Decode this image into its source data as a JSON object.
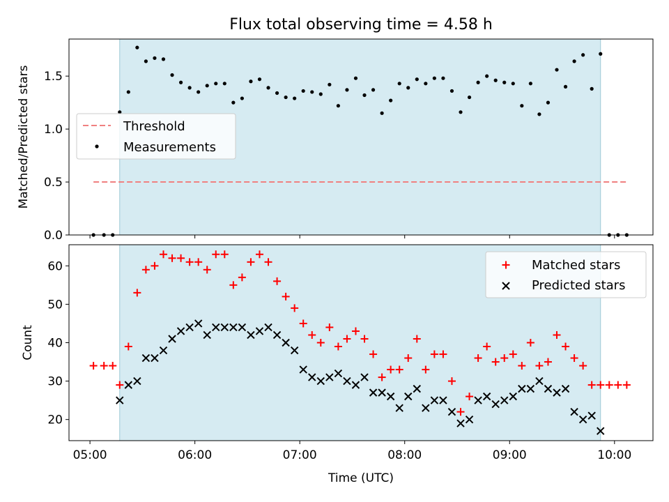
{
  "chart_data": [
    {
      "type": "scatter",
      "title": "Flux total observing time = 4.58 h",
      "xlabel": "",
      "ylabel": "Matched/Predicted stars",
      "xlim": [
        "04:48",
        "10:22"
      ],
      "ylim": [
        0,
        1.85
      ],
      "yticks": [
        "0.0",
        "0.5",
        "1.0",
        "1.5"
      ],
      "shaded_interval": [
        "05:17",
        "09:52"
      ],
      "threshold": {
        "name": "Threshold",
        "value": 0.5,
        "x_range": [
          "05:02",
          "10:07"
        ],
        "color": "#f08080"
      },
      "legend": {
        "position": "center-left",
        "entries": [
          "Threshold",
          "Measurements"
        ]
      },
      "series": [
        {
          "name": "Measurements",
          "color": "#000000",
          "points": [
            [
              "05:02",
              0.0
            ],
            [
              "05:08",
              0.0
            ],
            [
              "05:13",
              0.0
            ],
            [
              "05:17",
              1.16
            ],
            [
              "05:22",
              1.35
            ],
            [
              "05:27",
              1.77
            ],
            [
              "05:32",
              1.64
            ],
            [
              "05:37",
              1.67
            ],
            [
              "05:42",
              1.66
            ],
            [
              "05:47",
              1.51
            ],
            [
              "05:52",
              1.44
            ],
            [
              "05:57",
              1.39
            ],
            [
              "06:02",
              1.35
            ],
            [
              "06:07",
              1.41
            ],
            [
              "06:12",
              1.43
            ],
            [
              "06:17",
              1.43
            ],
            [
              "06:22",
              1.25
            ],
            [
              "06:27",
              1.29
            ],
            [
              "06:32",
              1.45
            ],
            [
              "06:37",
              1.47
            ],
            [
              "06:42",
              1.39
            ],
            [
              "06:47",
              1.34
            ],
            [
              "06:52",
              1.3
            ],
            [
              "06:57",
              1.29
            ],
            [
              "07:02",
              1.36
            ],
            [
              "07:07",
              1.35
            ],
            [
              "07:12",
              1.33
            ],
            [
              "07:17",
              1.42
            ],
            [
              "07:22",
              1.22
            ],
            [
              "07:27",
              1.37
            ],
            [
              "07:32",
              1.48
            ],
            [
              "07:37",
              1.32
            ],
            [
              "07:42",
              1.37
            ],
            [
              "07:47",
              1.15
            ],
            [
              "07:52",
              1.27
            ],
            [
              "07:57",
              1.43
            ],
            [
              "08:02",
              1.39
            ],
            [
              "08:07",
              1.47
            ],
            [
              "08:12",
              1.43
            ],
            [
              "08:17",
              1.48
            ],
            [
              "08:22",
              1.48
            ],
            [
              "08:27",
              1.36
            ],
            [
              "08:32",
              1.16
            ],
            [
              "08:37",
              1.3
            ],
            [
              "08:42",
              1.44
            ],
            [
              "08:47",
              1.5
            ],
            [
              "08:52",
              1.46
            ],
            [
              "08:57",
              1.44
            ],
            [
              "09:02",
              1.43
            ],
            [
              "09:07",
              1.22
            ],
            [
              "09:12",
              1.43
            ],
            [
              "09:17",
              1.14
            ],
            [
              "09:22",
              1.25
            ],
            [
              "09:27",
              1.56
            ],
            [
              "09:32",
              1.4
            ],
            [
              "09:37",
              1.64
            ],
            [
              "09:42",
              1.7
            ],
            [
              "09:47",
              1.38
            ],
            [
              "09:52",
              1.71
            ],
            [
              "09:57",
              0.0
            ],
            [
              "10:02",
              0.0
            ],
            [
              "10:07",
              0.0
            ]
          ]
        }
      ]
    },
    {
      "type": "scatter",
      "title": "",
      "xlabel": "Time (UTC)",
      "ylabel": "Count",
      "xlim": [
        "04:48",
        "10:22"
      ],
      "ylim": [
        14.5,
        65.5
      ],
      "yticks": [
        "20",
        "30",
        "40",
        "50",
        "60"
      ],
      "xticks": [
        "05:00",
        "06:00",
        "07:00",
        "08:00",
        "09:00",
        "10:00"
      ],
      "shaded_interval": [
        "05:17",
        "09:52"
      ],
      "legend": {
        "position": "top-right",
        "entries": [
          "Matched stars",
          "Predicted stars"
        ]
      },
      "series": [
        {
          "name": "Matched stars",
          "marker": "+",
          "color": "#ff0000",
          "points": [
            [
              "05:02",
              34
            ],
            [
              "05:08",
              34
            ],
            [
              "05:13",
              34
            ],
            [
              "05:17",
              29
            ],
            [
              "05:22",
              39
            ],
            [
              "05:27",
              53
            ],
            [
              "05:32",
              59
            ],
            [
              "05:37",
              60
            ],
            [
              "05:42",
              63
            ],
            [
              "05:47",
              62
            ],
            [
              "05:52",
              62
            ],
            [
              "05:57",
              61
            ],
            [
              "06:02",
              61
            ],
            [
              "06:07",
              59
            ],
            [
              "06:12",
              63
            ],
            [
              "06:17",
              63
            ],
            [
              "06:22",
              55
            ],
            [
              "06:27",
              57
            ],
            [
              "06:32",
              61
            ],
            [
              "06:37",
              63
            ],
            [
              "06:42",
              61
            ],
            [
              "06:47",
              56
            ],
            [
              "06:52",
              52
            ],
            [
              "06:57",
              49
            ],
            [
              "07:02",
              45
            ],
            [
              "07:07",
              42
            ],
            [
              "07:12",
              40
            ],
            [
              "07:17",
              44
            ],
            [
              "07:22",
              39
            ],
            [
              "07:27",
              41
            ],
            [
              "07:32",
              43
            ],
            [
              "07:37",
              41
            ],
            [
              "07:42",
              37
            ],
            [
              "07:47",
              31
            ],
            [
              "07:52",
              33
            ],
            [
              "07:57",
              33
            ],
            [
              "08:02",
              36
            ],
            [
              "08:07",
              41
            ],
            [
              "08:12",
              33
            ],
            [
              "08:17",
              37
            ],
            [
              "08:22",
              37
            ],
            [
              "08:27",
              30
            ],
            [
              "08:32",
              22
            ],
            [
              "08:37",
              26
            ],
            [
              "08:42",
              36
            ],
            [
              "08:47",
              39
            ],
            [
              "08:52",
              35
            ],
            [
              "08:57",
              36
            ],
            [
              "09:02",
              37
            ],
            [
              "09:07",
              34
            ],
            [
              "09:12",
              40
            ],
            [
              "09:17",
              34
            ],
            [
              "09:22",
              35
            ],
            [
              "09:27",
              42
            ],
            [
              "09:32",
              39
            ],
            [
              "09:37",
              36
            ],
            [
              "09:42",
              34
            ],
            [
              "09:47",
              29
            ],
            [
              "09:52",
              29
            ],
            [
              "09:57",
              29
            ],
            [
              "10:02",
              29
            ],
            [
              "10:07",
              29
            ]
          ]
        },
        {
          "name": "Predicted stars",
          "marker": "x",
          "color": "#000000",
          "points": [
            [
              "05:17",
              25
            ],
            [
              "05:22",
              29
            ],
            [
              "05:27",
              30
            ],
            [
              "05:32",
              36
            ],
            [
              "05:37",
              36
            ],
            [
              "05:42",
              38
            ],
            [
              "05:47",
              41
            ],
            [
              "05:52",
              43
            ],
            [
              "05:57",
              44
            ],
            [
              "06:02",
              45
            ],
            [
              "06:07",
              42
            ],
            [
              "06:12",
              44
            ],
            [
              "06:17",
              44
            ],
            [
              "06:22",
              44
            ],
            [
              "06:27",
              44
            ],
            [
              "06:32",
              42
            ],
            [
              "06:37",
              43
            ],
            [
              "06:42",
              44
            ],
            [
              "06:47",
              42
            ],
            [
              "06:52",
              40
            ],
            [
              "06:57",
              38
            ],
            [
              "07:02",
              33
            ],
            [
              "07:07",
              31
            ],
            [
              "07:12",
              30
            ],
            [
              "07:17",
              31
            ],
            [
              "07:22",
              32
            ],
            [
              "07:27",
              30
            ],
            [
              "07:32",
              29
            ],
            [
              "07:37",
              31
            ],
            [
              "07:42",
              27
            ],
            [
              "07:47",
              27
            ],
            [
              "07:52",
              26
            ],
            [
              "07:57",
              23
            ],
            [
              "08:02",
              26
            ],
            [
              "08:07",
              28
            ],
            [
              "08:12",
              23
            ],
            [
              "08:17",
              25
            ],
            [
              "08:22",
              25
            ],
            [
              "08:27",
              22
            ],
            [
              "08:32",
              19
            ],
            [
              "08:37",
              20
            ],
            [
              "08:42",
              25
            ],
            [
              "08:47",
              26
            ],
            [
              "08:52",
              24
            ],
            [
              "08:57",
              25
            ],
            [
              "09:02",
              26
            ],
            [
              "09:07",
              28
            ],
            [
              "09:12",
              28
            ],
            [
              "09:17",
              30
            ],
            [
              "09:22",
              28
            ],
            [
              "09:27",
              27
            ],
            [
              "09:32",
              28
            ],
            [
              "09:37",
              22
            ],
            [
              "09:42",
              20
            ],
            [
              "09:47",
              21
            ],
            [
              "09:52",
              17
            ]
          ]
        }
      ]
    }
  ]
}
